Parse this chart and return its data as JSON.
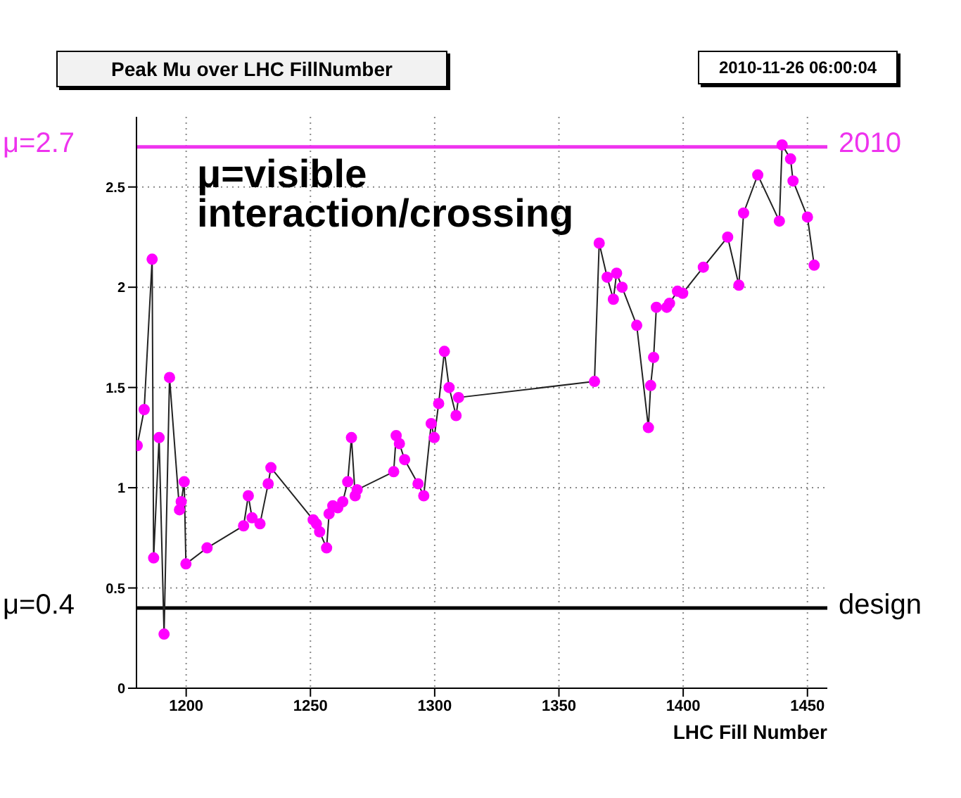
{
  "chart_data": {
    "type": "line",
    "title": "Peak Mu over LHC FillNumber",
    "subtitle": "2010-11-26 06:00:04",
    "xlabel": "LHC Fill Number",
    "x": [
      1180.3,
      1183.1,
      1186.3,
      1186.9,
      1189.1,
      1191.1,
      1193.3,
      1197.3,
      1198,
      1199.2,
      1199.9,
      1208.4,
      1223.1,
      1225,
      1226.5,
      1229.7,
      1233,
      1234.1,
      1251.1,
      1252.4,
      1253.7,
      1256.5,
      1257.5,
      1259,
      1261,
      1263,
      1265,
      1266.5,
      1268,
      1268.8,
      1283.5,
      1284.5,
      1285.8,
      1287.9,
      1293.3,
      1295.6,
      1298.6,
      1299.8,
      1301.6,
      1303.9,
      1305.8,
      1308.6,
      1309.6,
      1364.3,
      1366.2,
      1369.4,
      1371.9,
      1373.2,
      1375.4,
      1381.3,
      1386,
      1386.9,
      1388.1,
      1389.2,
      1393.4,
      1394.5,
      1397.7,
      1399.8,
      1408.1,
      1417.9,
      1422.4,
      1424.3,
      1430,
      1438.7,
      1439.8,
      1443.2,
      1444.2,
      1450,
      1452.7
    ],
    "series": [
      {
        "color": "#ff00ff",
        "values": [
          1.21,
          1.39,
          2.14,
          0.65,
          1.25,
          0.27,
          1.55,
          0.89,
          0.93,
          1.03,
          0.62,
          0.7,
          0.81,
          0.96,
          0.85,
          0.82,
          1.02,
          1.1,
          0.84,
          0.82,
          0.78,
          0.7,
          0.87,
          0.91,
          0.9,
          0.93,
          1.03,
          1.25,
          0.96,
          0.99,
          1.08,
          1.26,
          1.22,
          1.14,
          1.02,
          0.96,
          1.32,
          1.25,
          1.42,
          1.68,
          1.5,
          1.36,
          1.45,
          1.53,
          2.22,
          2.05,
          1.94,
          2.07,
          2,
          1.81,
          1.3,
          1.51,
          1.65,
          1.9,
          1.9,
          1.92,
          1.98,
          1.97,
          2.1,
          2.25,
          2.01,
          2.37,
          2.56,
          2.33,
          2.71,
          2.64,
          2.53,
          2.35,
          2.11
        ]
      }
    ],
    "xlim": [
      1180,
      1458
    ],
    "xticks": [
      1200,
      1250,
      1300,
      1350,
      1400,
      1450
    ],
    "ylim": [
      0,
      2.85
    ],
    "yticks": [
      0,
      0.5,
      1,
      1.5,
      2,
      2.5
    ],
    "grid": true,
    "marker": "circle",
    "line_style": "solid",
    "ref_lines": [
      {
        "axis": "y",
        "value": 2.7,
        "label": "μ=2.7",
        "color": "#ee33ee"
      },
      {
        "axis": "y",
        "value": 0.4,
        "label": "μ=0.4",
        "color": "#000000"
      }
    ],
    "annotations": [
      "μ=visible interaction/crossing",
      "2010",
      "design"
    ]
  }
}
